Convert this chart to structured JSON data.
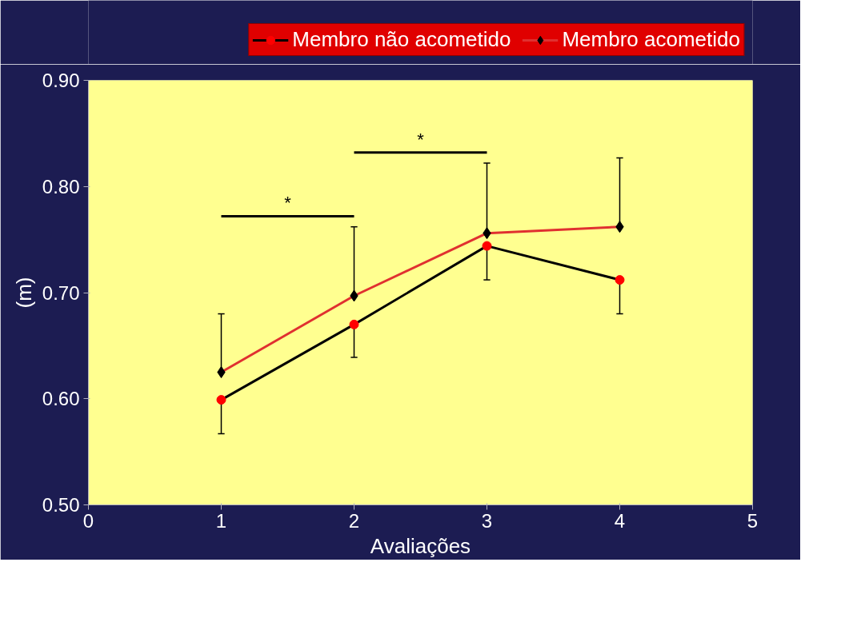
{
  "chart_data": {
    "type": "line",
    "xlabel": "Avaliações",
    "ylabel": "(m)",
    "x": [
      1,
      2,
      3,
      4
    ],
    "xlim": [
      0,
      5
    ],
    "xticks": [
      0,
      1,
      2,
      3,
      4,
      5
    ],
    "ylim": [
      0.5,
      0.9
    ],
    "yticks": [
      {
        "value": 0.5,
        "label": "0.50"
      },
      {
        "value": 0.6,
        "label": "0.60"
      },
      {
        "value": 0.7,
        "label": "0.70"
      },
      {
        "value": 0.8,
        "label": "0.80"
      },
      {
        "value": 0.9,
        "label": "0.90"
      }
    ],
    "series": [
      {
        "name": "Membro não acometido",
        "color": "#000000",
        "marker": "circle",
        "colors": [
          "#ff0000",
          "#ff0000",
          "#ff0000",
          "#ff0000"
        ],
        "line_style": "solid",
        "values": [
          0.599,
          0.67,
          0.744,
          0.712
        ],
        "errors": [
          [
            0.567,
            0.599
          ],
          [
            0.639,
            0.67
          ],
          [
            0.712,
            0.744
          ],
          [
            0.68,
            0.712
          ]
        ]
      },
      {
        "name": "Membro acometido",
        "color": "#e03030",
        "marker": "diamond",
        "colors": [
          "#000000",
          "#000000",
          "#000000",
          "#000000"
        ],
        "line_style": "solid",
        "values": [
          0.625,
          0.697,
          0.756,
          0.762
        ],
        "errors": [
          [
            0.625,
            0.68
          ],
          [
            0.697,
            0.762
          ],
          [
            0.756,
            0.822
          ],
          [
            0.762,
            0.827
          ]
        ]
      }
    ],
    "annotations": [
      "*",
      "*"
    ],
    "grid": false,
    "legend": "top"
  }
}
